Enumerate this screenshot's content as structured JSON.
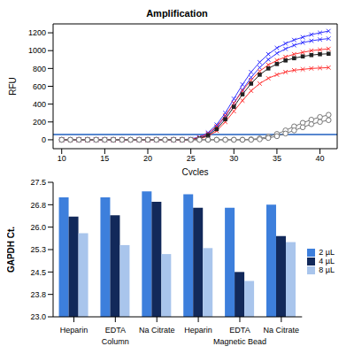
{
  "chart_data": [
    {
      "type": "line",
      "title": "Amplification",
      "x_label": "Cycles",
      "y_label": "RFU",
      "x": [
        10,
        11,
        12,
        13,
        14,
        15,
        16,
        17,
        18,
        19,
        20,
        21,
        22,
        23,
        24,
        25,
        26,
        27,
        28,
        29,
        30,
        31,
        32,
        33,
        34,
        35,
        36,
        37,
        38,
        39,
        40,
        41
      ],
      "xlim": [
        9,
        42
      ],
      "xticks": [
        10,
        15,
        20,
        25,
        30,
        35,
        40
      ],
      "ylim": [
        -100,
        1300
      ],
      "yticks": [
        0,
        200,
        400,
        600,
        800,
        1000,
        1200
      ],
      "grid": false,
      "threshold": 60,
      "series": [
        {
          "color": "#3333ff",
          "marker": "x",
          "values": [
            0,
            0,
            0,
            0,
            0,
            0,
            0,
            0,
            0,
            0,
            0,
            0,
            0,
            0,
            0,
            10,
            30,
            80,
            170,
            300,
            460,
            620,
            760,
            870,
            960,
            1030,
            1080,
            1120,
            1150,
            1180,
            1200,
            1220
          ]
        },
        {
          "color": "#3333ff",
          "marker": "x",
          "values": [
            0,
            0,
            0,
            0,
            0,
            0,
            0,
            0,
            0,
            0,
            0,
            0,
            0,
            0,
            0,
            5,
            20,
            60,
            140,
            260,
            410,
            560,
            700,
            810,
            900,
            970,
            1020,
            1060,
            1090,
            1110,
            1125,
            1135
          ]
        },
        {
          "color": "#ff3333",
          "marker": "x",
          "values": [
            0,
            0,
            0,
            0,
            0,
            0,
            0,
            0,
            0,
            0,
            0,
            0,
            0,
            0,
            0,
            5,
            25,
            70,
            150,
            270,
            410,
            550,
            670,
            770,
            840,
            890,
            930,
            960,
            980,
            1000,
            1010,
            1020
          ]
        },
        {
          "color": "#ff3333",
          "marker": "x",
          "values": [
            0,
            0,
            0,
            0,
            0,
            0,
            0,
            0,
            0,
            0,
            0,
            0,
            0,
            0,
            0,
            0,
            10,
            40,
            100,
            200,
            320,
            440,
            550,
            630,
            690,
            730,
            760,
            780,
            790,
            800,
            805,
            810
          ]
        },
        {
          "color": "#222222",
          "marker": "square",
          "values": [
            0,
            0,
            0,
            0,
            0,
            0,
            0,
            0,
            0,
            0,
            0,
            0,
            0,
            0,
            0,
            0,
            15,
            50,
            120,
            230,
            370,
            510,
            630,
            730,
            800,
            850,
            890,
            915,
            935,
            950,
            960,
            965
          ]
        },
        {
          "color": "#777777",
          "marker": "circle",
          "values": [
            0,
            0,
            0,
            0,
            0,
            0,
            0,
            0,
            0,
            0,
            0,
            0,
            0,
            0,
            0,
            0,
            0,
            0,
            0,
            0,
            0,
            0,
            5,
            15,
            35,
            65,
            105,
            150,
            190,
            225,
            255,
            280
          ]
        },
        {
          "color": "#777777",
          "marker": "circle",
          "values": [
            0,
            0,
            0,
            0,
            0,
            0,
            0,
            0,
            0,
            0,
            0,
            0,
            0,
            0,
            0,
            0,
            0,
            0,
            0,
            0,
            0,
            0,
            0,
            5,
            20,
            40,
            70,
            105,
            140,
            175,
            200,
            220
          ]
        }
      ]
    },
    {
      "type": "bar",
      "y_label": "GAPDH Ct.",
      "categories": [
        "Heparin",
        "EDTA",
        "Na Citrate",
        "Heparin",
        "EDTA",
        "Na Citrate"
      ],
      "groups": [
        {
          "label": "Column",
          "span": 3
        },
        {
          "label": "Magnetic Bead",
          "span": 3
        }
      ],
      "ylim": [
        23,
        27.5
      ],
      "yticks": [
        {
          "value": 23,
          "label": "23.0"
        },
        {
          "value": 23.75,
          "label": "23.8"
        },
        {
          "value": 24.5,
          "label": "24.5"
        },
        {
          "value": 25.25,
          "label": "25.3"
        },
        {
          "value": 26,
          "label": "26.0"
        },
        {
          "value": 26.75,
          "label": "26.8"
        },
        {
          "value": 27.5,
          "label": "27.5"
        }
      ],
      "grid": false,
      "legend": "right",
      "series": [
        {
          "name": "2 µL",
          "color": "#3d7fdc",
          "values": [
            27.0,
            27.0,
            27.2,
            27.1,
            26.65,
            26.75
          ]
        },
        {
          "name": "4 µL",
          "color": "#12295a",
          "values": [
            26.35,
            26.4,
            26.85,
            26.65,
            24.5,
            25.7
          ]
        },
        {
          "name": "8 µL",
          "color": "#a9c5ec",
          "values": [
            25.8,
            25.4,
            25.1,
            25.3,
            24.2,
            25.5
          ]
        }
      ]
    }
  ]
}
